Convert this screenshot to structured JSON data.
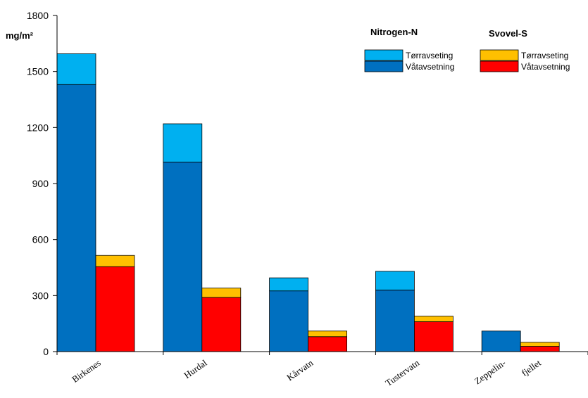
{
  "chart_data": {
    "type": "bar",
    "stacked": true,
    "unit_label": "mg/m²",
    "ylim": [
      0,
      1800
    ],
    "yticks": [
      0,
      300,
      600,
      900,
      1200,
      1500,
      1800
    ],
    "grid": false,
    "legend_position": "top-right",
    "categories": [
      {
        "name": "Birkenes",
        "label_lines": [
          "Birkenes"
        ]
      },
      {
        "name": "Hurdal",
        "label_lines": [
          "Hurdal"
        ]
      },
      {
        "name": "Kårvatn",
        "label_lines": [
          "Kårvatn"
        ]
      },
      {
        "name": "Tustervatn",
        "label_lines": [
          "Tustervatn"
        ]
      },
      {
        "name": "Zeppelin-fjellet",
        "label_lines": [
          "Zeppelin-",
          "fjellet"
        ]
      }
    ],
    "groups": [
      {
        "name": "Nitrogen-N",
        "series": [
          {
            "name": "Våtavsetning",
            "color": "#0070c0",
            "values": [
              1430,
              1015,
              325,
              330,
              110
            ]
          },
          {
            "name": "Tørravseting",
            "color": "#00b0f0",
            "values": [
              165,
              205,
              70,
              100,
              0
            ]
          }
        ]
      },
      {
        "name": "Svovel-S",
        "series": [
          {
            "name": "Våtavsetning",
            "color": "#ff0000",
            "values": [
              455,
              290,
              80,
              160,
              28
            ]
          },
          {
            "name": "Tørravseting",
            "color": "#ffc000",
            "values": [
              60,
              50,
              30,
              30,
              22
            ]
          }
        ]
      }
    ]
  }
}
